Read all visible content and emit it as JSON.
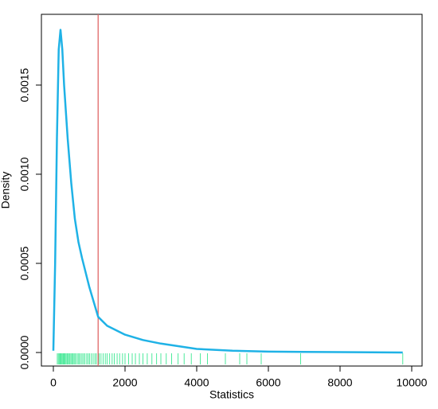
{
  "chart_data": {
    "type": "density",
    "xlabel": "Statistics",
    "ylabel": "Density",
    "xlim": [
      -333,
      10289
    ],
    "ylim": [
      -7.59e-05,
      0.001897
    ],
    "xticks": [
      0,
      2000,
      4000,
      6000,
      8000,
      10000
    ],
    "yticks": [
      {
        "value": 0,
        "label": "0.0000"
      },
      0.0005,
      {
        "value": 0.001,
        "label": "0.0010"
      },
      0.0015
    ],
    "series": [
      {
        "color": "#1fb2e6",
        "x": [
          0,
          50,
          100,
          150,
          200,
          250,
          300,
          400,
          500,
          600,
          700,
          800,
          1000,
          1250,
          1500,
          2000,
          2500,
          3000,
          4000,
          5000,
          6000,
          8000,
          9750
        ],
        "values": [
          1e-05,
          0.0005,
          0.0012,
          0.0017,
          0.00181,
          0.0017,
          0.0015,
          0.0012,
          0.00095,
          0.00075,
          0.00062,
          0.00053,
          0.00037,
          0.0002,
          0.00015,
          0.0001,
          7e-05,
          5e-05,
          2e-05,
          1e-05,
          5e-06,
          2e-06,
          0
        ]
      }
    ],
    "vline": 1250,
    "vline_color": "#e06666",
    "rug_color": "#4eea9c",
    "rug": [
      110,
      140,
      170,
      190,
      210,
      230,
      260,
      280,
      300,
      320,
      350,
      380,
      400,
      430,
      460,
      490,
      520,
      550,
      580,
      610,
      650,
      690,
      720,
      760,
      800,
      840,
      880,
      930,
      970,
      1010,
      1060,
      1110,
      1160,
      1200,
      1280,
      1330,
      1390,
      1450,
      1500,
      1570,
      1640,
      1700,
      1780,
      1850,
      1930,
      2000,
      2100,
      2200,
      2290,
      2400,
      2500,
      2620,
      2750,
      2880,
      3000,
      3150,
      3300,
      3480,
      3650,
      3850,
      4100,
      4300,
      4800,
      5200,
      5400,
      5800,
      6900,
      9750
    ]
  }
}
